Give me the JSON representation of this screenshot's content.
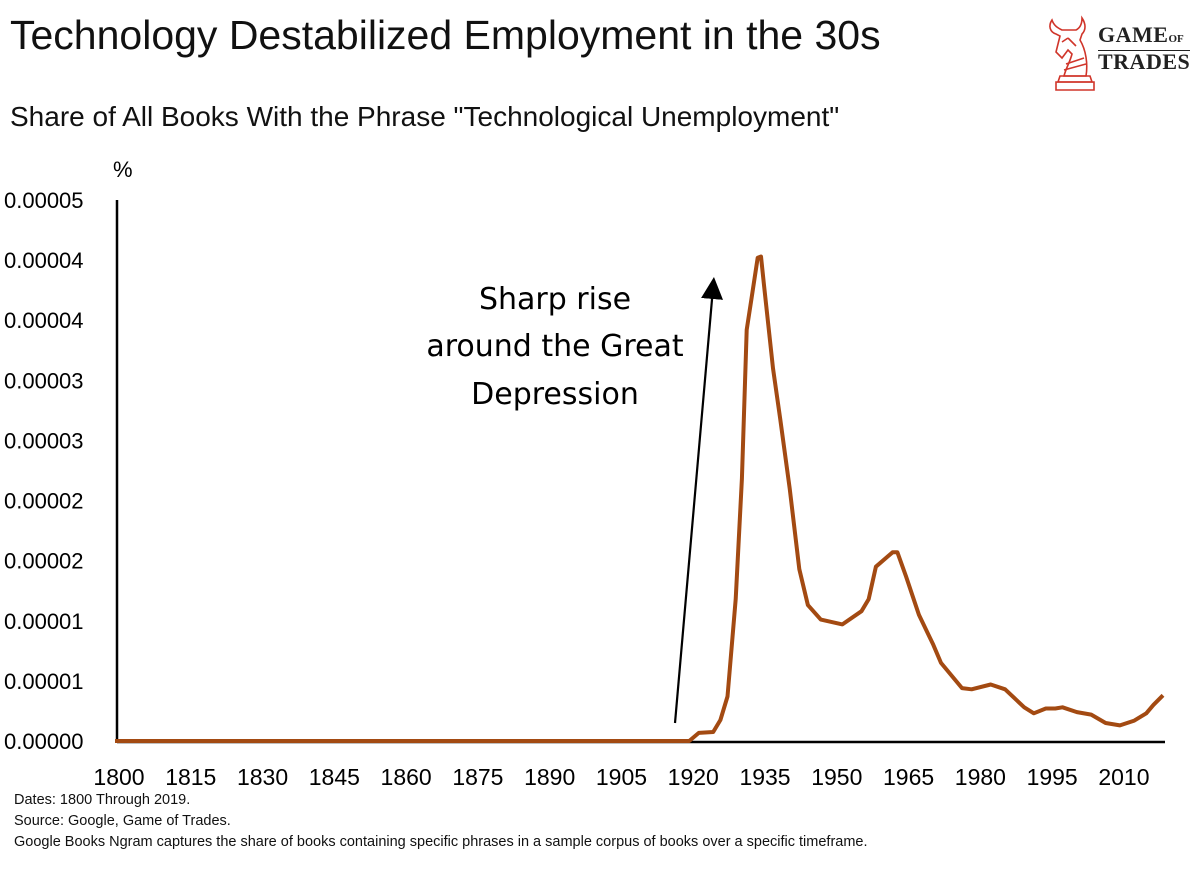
{
  "header": {
    "title": "Technology Destabilized Employment in the 30s",
    "subtitle": "Share of All Books With the Phrase \"Technological Unemployment\"",
    "logo": {
      "line1": "GAME",
      "of": "OF",
      "line2": "TRADES"
    }
  },
  "footer": {
    "dates": "Dates: 1800 Through 2019.",
    "source": "Source: Google, Game of Trades.",
    "note": "Google Books Ngram captures the share of books containing specific phrases in a sample corpus of books over a specific timeframe."
  },
  "colors": {
    "line": "#a34a12",
    "axis": "#000000",
    "logo": "#d0352a"
  },
  "chart_data": {
    "type": "line",
    "title": "Share of All Books With the Phrase \"Technological Unemployment\"",
    "ylabel": "%",
    "xlabel": "",
    "xlim": [
      1800,
      2019
    ],
    "ylim": [
      0,
      4.5e-05
    ],
    "y_ticks": [
      0,
      5e-06,
      1e-05,
      1.5e-05,
      2e-05,
      2.5e-05,
      3e-05,
      3.5e-05,
      4e-05,
      4.5e-05
    ],
    "y_tick_labels": [
      "0.00000",
      "0.00001",
      "0.00001",
      "0.00002",
      "0.00002",
      "0.00003",
      "0.00003",
      "0.00004",
      "0.00004",
      "0.00005"
    ],
    "x_ticks": [
      1800,
      1815,
      1830,
      1845,
      1860,
      1875,
      1890,
      1905,
      1920,
      1935,
      1950,
      1965,
      1980,
      1995,
      2010
    ],
    "x_tick_labels": [
      "1800",
      "1815",
      "1830",
      "1845",
      "1860",
      "1875",
      "1890",
      "1905",
      "1920",
      "1935",
      "1950",
      "1965",
      "1980",
      "1995",
      "2010"
    ],
    "grid": false,
    "series": [
      {
        "name": "Technological Unemployment",
        "x": [
          1800,
          1900,
          1920,
          1922,
          1925,
          1926.5,
          1928,
          1929.7,
          1931,
          1932,
          1933,
          1934.3,
          1935,
          1935.6,
          1937.5,
          1939,
          1941,
          1943,
          1944.8,
          1947.5,
          1952,
          1956,
          1957.5,
          1959,
          1962.5,
          1963.5,
          1965.3,
          1968,
          1971,
          1972.6,
          1977,
          1979,
          1983,
          1986,
          1990,
          1992,
          1994.5,
          1996.5,
          1998,
          2001,
          2004,
          2007,
          2010,
          2013,
          2015.5,
          2017,
          2019
        ],
        "values": [
          0,
          0,
          0,
          6.7e-07,
          7.5e-07,
          1.75e-06,
          3.7e-06,
          1.18e-05,
          2.18e-05,
          3.42e-05,
          3.68e-05,
          4.02e-05,
          4.03e-05,
          3.8e-05,
          3.1e-05,
          2.68e-05,
          2.1e-05,
          1.43e-05,
          1.13e-05,
          1.01e-05,
          9.7e-06,
          1.08e-05,
          1.18e-05,
          1.45e-05,
          1.57e-05,
          1.57e-05,
          1.37e-05,
          1.05e-05,
          8e-06,
          6.5e-06,
          4.4e-06,
          4.3e-06,
          4.7e-06,
          4.3e-06,
          2.8e-06,
          2.3e-06,
          2.7e-06,
          2.7e-06,
          2.8e-06,
          2.4e-06,
          2.2e-06,
          1.5e-06,
          1.3e-06,
          1.7e-06,
          2.3e-06,
          3e-06,
          3.8e-06
        ]
      }
    ],
    "annotations": [
      {
        "lines": [
          "Sharp rise",
          "around the Great",
          "Depression"
        ],
        "arrow_from_year": 1920,
        "arrow_to_year": 1928
      }
    ]
  }
}
